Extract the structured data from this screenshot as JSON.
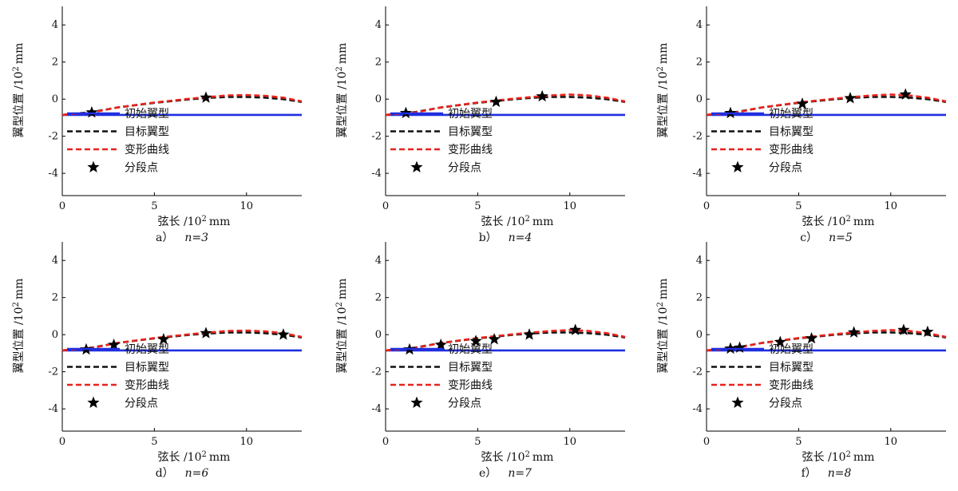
{
  "chart_data": [
    {
      "type": "line",
      "caption_prefix": "a）",
      "caption_n": "n=3",
      "xlabel": "弦长 /10",
      "ylabel": "翼型位置 /10",
      "label_exp": "2",
      "label_unit": "mm",
      "xlim": [
        0,
        13
      ],
      "ylim": [
        -5.2,
        5
      ],
      "xticks": [
        "0",
        "5",
        "10"
      ],
      "yticks": [
        "-4",
        "-2",
        "0",
        "2",
        "4"
      ],
      "legend": [
        "初始翼型",
        "目标翼型",
        "变形曲线",
        "分段点"
      ],
      "legend_position": "lower-left",
      "series": [
        {
          "name": "初始翼型",
          "style": "solid",
          "color": "#1f2fe0",
          "x": [
            0,
            13
          ],
          "y": [
            -0.85,
            -0.85
          ]
        },
        {
          "name": "目标翼型",
          "style": "dashed",
          "color": "#111111",
          "x": [
            0,
            1.6,
            3,
            5,
            7,
            8,
            9,
            10,
            11,
            12,
            13
          ],
          "y": [
            -0.85,
            -0.7,
            -0.45,
            -0.2,
            0.0,
            0.07,
            0.12,
            0.12,
            0.08,
            0.0,
            -0.15
          ]
        },
        {
          "name": "变形曲线",
          "style": "dashed",
          "color": "#e8231c",
          "x": [
            0,
            1.6,
            3,
            5,
            7,
            8,
            9,
            10,
            11,
            12,
            13
          ],
          "y": [
            -0.85,
            -0.72,
            -0.45,
            -0.18,
            0.03,
            0.12,
            0.2,
            0.22,
            0.18,
            0.08,
            -0.12
          ]
        },
        {
          "name": "分段点",
          "style": "marker",
          "color": "#000000",
          "x": [
            1.6,
            7.8
          ],
          "y": [
            -0.72,
            0.08
          ]
        }
      ]
    },
    {
      "type": "line",
      "caption_prefix": "b）",
      "caption_n": "n=4",
      "xlabel": "弦长 /10",
      "ylabel": "翼型位置 /10",
      "label_exp": "2",
      "label_unit": "mm",
      "xlim": [
        0,
        13
      ],
      "ylim": [
        -5.2,
        5
      ],
      "xticks": [
        "0",
        "5",
        "10"
      ],
      "yticks": [
        "-4",
        "-2",
        "0",
        "2",
        "4"
      ],
      "legend": [
        "初始翼型",
        "目标翼型",
        "变形曲线",
        "分段点"
      ],
      "legend_position": "lower-left",
      "series": [
        {
          "name": "初始翼型",
          "style": "solid",
          "color": "#1f2fe0",
          "x": [
            0,
            13
          ],
          "y": [
            -0.85,
            -0.85
          ]
        },
        {
          "name": "目标翼型",
          "style": "dashed",
          "color": "#111111",
          "x": [
            0,
            1.6,
            3,
            5,
            7,
            8,
            9,
            10,
            11,
            12,
            13
          ],
          "y": [
            -0.85,
            -0.7,
            -0.45,
            -0.2,
            0.0,
            0.07,
            0.12,
            0.12,
            0.08,
            0.0,
            -0.15
          ]
        },
        {
          "name": "变形曲线",
          "style": "dashed",
          "color": "#e8231c",
          "x": [
            0,
            1.6,
            3,
            5,
            7,
            8,
            9,
            10,
            11,
            12,
            13
          ],
          "y": [
            -0.85,
            -0.72,
            -0.45,
            -0.18,
            0.03,
            0.12,
            0.2,
            0.25,
            0.2,
            0.08,
            -0.12
          ]
        },
        {
          "name": "分段点",
          "style": "marker",
          "color": "#000000",
          "x": [
            1.1,
            6.0,
            8.5
          ],
          "y": [
            -0.75,
            -0.15,
            0.15
          ]
        }
      ]
    },
    {
      "type": "line",
      "caption_prefix": "c）",
      "caption_n": "n=5",
      "xlabel": "弦长 /10",
      "ylabel": "翼型位置 /10",
      "label_exp": "2",
      "label_unit": "mm",
      "xlim": [
        0,
        13
      ],
      "ylim": [
        -5.2,
        5
      ],
      "xticks": [
        "0",
        "5",
        "10"
      ],
      "yticks": [
        "-4",
        "-2",
        "0",
        "2",
        "4"
      ],
      "legend": [
        "初始翼型",
        "目标翼型",
        "变形曲线",
        "分段点"
      ],
      "legend_position": "lower-left",
      "series": [
        {
          "name": "初始翼型",
          "style": "solid",
          "color": "#1f2fe0",
          "x": [
            0,
            13
          ],
          "y": [
            -0.85,
            -0.85
          ]
        },
        {
          "name": "目标翼型",
          "style": "dashed",
          "color": "#111111",
          "x": [
            0,
            1.6,
            3,
            5,
            7,
            8,
            9,
            10,
            11,
            12,
            13
          ],
          "y": [
            -0.85,
            -0.7,
            -0.45,
            -0.2,
            0.0,
            0.07,
            0.12,
            0.12,
            0.08,
            0.0,
            -0.15
          ]
        },
        {
          "name": "变形曲线",
          "style": "dashed",
          "color": "#e8231c",
          "x": [
            0,
            1.6,
            3,
            5,
            7,
            8,
            9,
            10,
            11,
            12,
            13
          ],
          "y": [
            -0.85,
            -0.72,
            -0.45,
            -0.18,
            0.03,
            0.12,
            0.2,
            0.25,
            0.2,
            0.08,
            -0.12
          ]
        },
        {
          "name": "分段点",
          "style": "marker",
          "color": "#000000",
          "x": [
            1.3,
            5.2,
            7.8,
            10.8
          ],
          "y": [
            -0.75,
            -0.25,
            0.05,
            0.25
          ]
        }
      ]
    },
    {
      "type": "line",
      "caption_prefix": "d）",
      "caption_n": "n=6",
      "xlabel": "弦长 /10",
      "ylabel": "翼型位置 /10",
      "label_exp": "2",
      "label_unit": "mm",
      "xlim": [
        0,
        13
      ],
      "ylim": [
        -5.2,
        5
      ],
      "xticks": [
        "0",
        "5",
        "10"
      ],
      "yticks": [
        "-4",
        "-2",
        "0",
        "2",
        "4"
      ],
      "legend": [
        "初始翼型",
        "目标翼型",
        "变形曲线",
        "分段点"
      ],
      "legend_position": "lower-left",
      "series": [
        {
          "name": "初始翼型",
          "style": "solid",
          "color": "#1f2fe0",
          "x": [
            0,
            13
          ],
          "y": [
            -0.85,
            -0.85
          ]
        },
        {
          "name": "目标翼型",
          "style": "dashed",
          "color": "#111111",
          "x": [
            0,
            1.6,
            3,
            5,
            7,
            8,
            9,
            10,
            11,
            12,
            13
          ],
          "y": [
            -0.85,
            -0.7,
            -0.45,
            -0.2,
            0.0,
            0.07,
            0.12,
            0.12,
            0.08,
            0.0,
            -0.15
          ]
        },
        {
          "name": "变形曲线",
          "style": "dashed",
          "color": "#e8231c",
          "x": [
            0,
            1.6,
            3,
            5,
            7,
            8,
            9,
            10,
            11,
            12,
            13
          ],
          "y": [
            -0.85,
            -0.72,
            -0.45,
            -0.18,
            0.03,
            0.12,
            0.2,
            0.22,
            0.18,
            0.08,
            -0.12
          ]
        },
        {
          "name": "分段点",
          "style": "marker",
          "color": "#000000",
          "x": [
            1.3,
            2.8,
            5.5,
            7.8,
            12.0
          ],
          "y": [
            -0.8,
            -0.55,
            -0.25,
            0.08,
            0.0
          ]
        }
      ]
    },
    {
      "type": "line",
      "caption_prefix": "e）",
      "caption_n": "n=7",
      "xlabel": "弦长 /10",
      "ylabel": "翼型位置 /10",
      "label_exp": "2",
      "label_unit": "mm",
      "xlim": [
        0,
        13
      ],
      "ylim": [
        -5.2,
        5
      ],
      "xticks": [
        "0",
        "5",
        "10"
      ],
      "yticks": [
        "-4",
        "-2",
        "0",
        "2",
        "4"
      ],
      "legend": [
        "初始翼型",
        "目标翼型",
        "变形曲线",
        "分段点"
      ],
      "legend_position": "lower-left",
      "series": [
        {
          "name": "初始翼型",
          "style": "solid",
          "color": "#1f2fe0",
          "x": [
            0,
            13
          ],
          "y": [
            -0.85,
            -0.85
          ]
        },
        {
          "name": "目标翼型",
          "style": "dashed",
          "color": "#111111",
          "x": [
            0,
            1.6,
            3,
            5,
            7,
            8,
            9,
            10,
            11,
            12,
            13
          ],
          "y": [
            -0.85,
            -0.7,
            -0.45,
            -0.2,
            0.0,
            0.07,
            0.12,
            0.12,
            0.08,
            0.0,
            -0.15
          ]
        },
        {
          "name": "变形曲线",
          "style": "dashed",
          "color": "#e8231c",
          "x": [
            0,
            1.6,
            3,
            5,
            7,
            8,
            9,
            10,
            11,
            12,
            13
          ],
          "y": [
            -0.85,
            -0.72,
            -0.45,
            -0.18,
            0.03,
            0.12,
            0.2,
            0.25,
            0.2,
            0.08,
            -0.12
          ]
        },
        {
          "name": "分段点",
          "style": "marker",
          "color": "#000000",
          "x": [
            1.3,
            3.0,
            4.9,
            5.9,
            7.8,
            10.3
          ],
          "y": [
            -0.8,
            -0.55,
            -0.35,
            -0.25,
            0.0,
            0.25
          ]
        }
      ]
    },
    {
      "type": "line",
      "caption_prefix": "f）",
      "caption_n": "n=8",
      "xlabel": "弦长 /10",
      "ylabel": "翼型位置 /10",
      "label_exp": "2",
      "label_unit": "mm",
      "xlim": [
        0,
        13
      ],
      "ylim": [
        -5.2,
        5
      ],
      "xticks": [
        "0",
        "5",
        "10"
      ],
      "yticks": [
        "-4",
        "-2",
        "0",
        "2",
        "4"
      ],
      "legend": [
        "初始翼型",
        "目标翼型",
        "变形曲线",
        "分段点"
      ],
      "legend_position": "lower-left",
      "series": [
        {
          "name": "初始翼型",
          "style": "solid",
          "color": "#1f2fe0",
          "x": [
            0,
            13
          ],
          "y": [
            -0.85,
            -0.85
          ]
        },
        {
          "name": "目标翼型",
          "style": "dashed",
          "color": "#111111",
          "x": [
            0,
            1.6,
            3,
            5,
            7,
            8,
            9,
            10,
            11,
            12,
            13
          ],
          "y": [
            -0.85,
            -0.7,
            -0.45,
            -0.2,
            0.0,
            0.07,
            0.12,
            0.12,
            0.08,
            0.0,
            -0.15
          ]
        },
        {
          "name": "变形曲线",
          "style": "dashed",
          "color": "#e8231c",
          "x": [
            0,
            1.6,
            3,
            5,
            7,
            8,
            9,
            10,
            11,
            12,
            13
          ],
          "y": [
            -0.85,
            -0.72,
            -0.45,
            -0.18,
            0.03,
            0.12,
            0.2,
            0.25,
            0.2,
            0.08,
            -0.12
          ]
        },
        {
          "name": "分段点",
          "style": "marker",
          "color": "#000000",
          "x": [
            1.3,
            1.8,
            4.0,
            5.7,
            8.0,
            10.7,
            12.0
          ],
          "y": [
            -0.75,
            -0.7,
            -0.4,
            -0.2,
            0.12,
            0.25,
            0.15
          ]
        }
      ]
    }
  ]
}
